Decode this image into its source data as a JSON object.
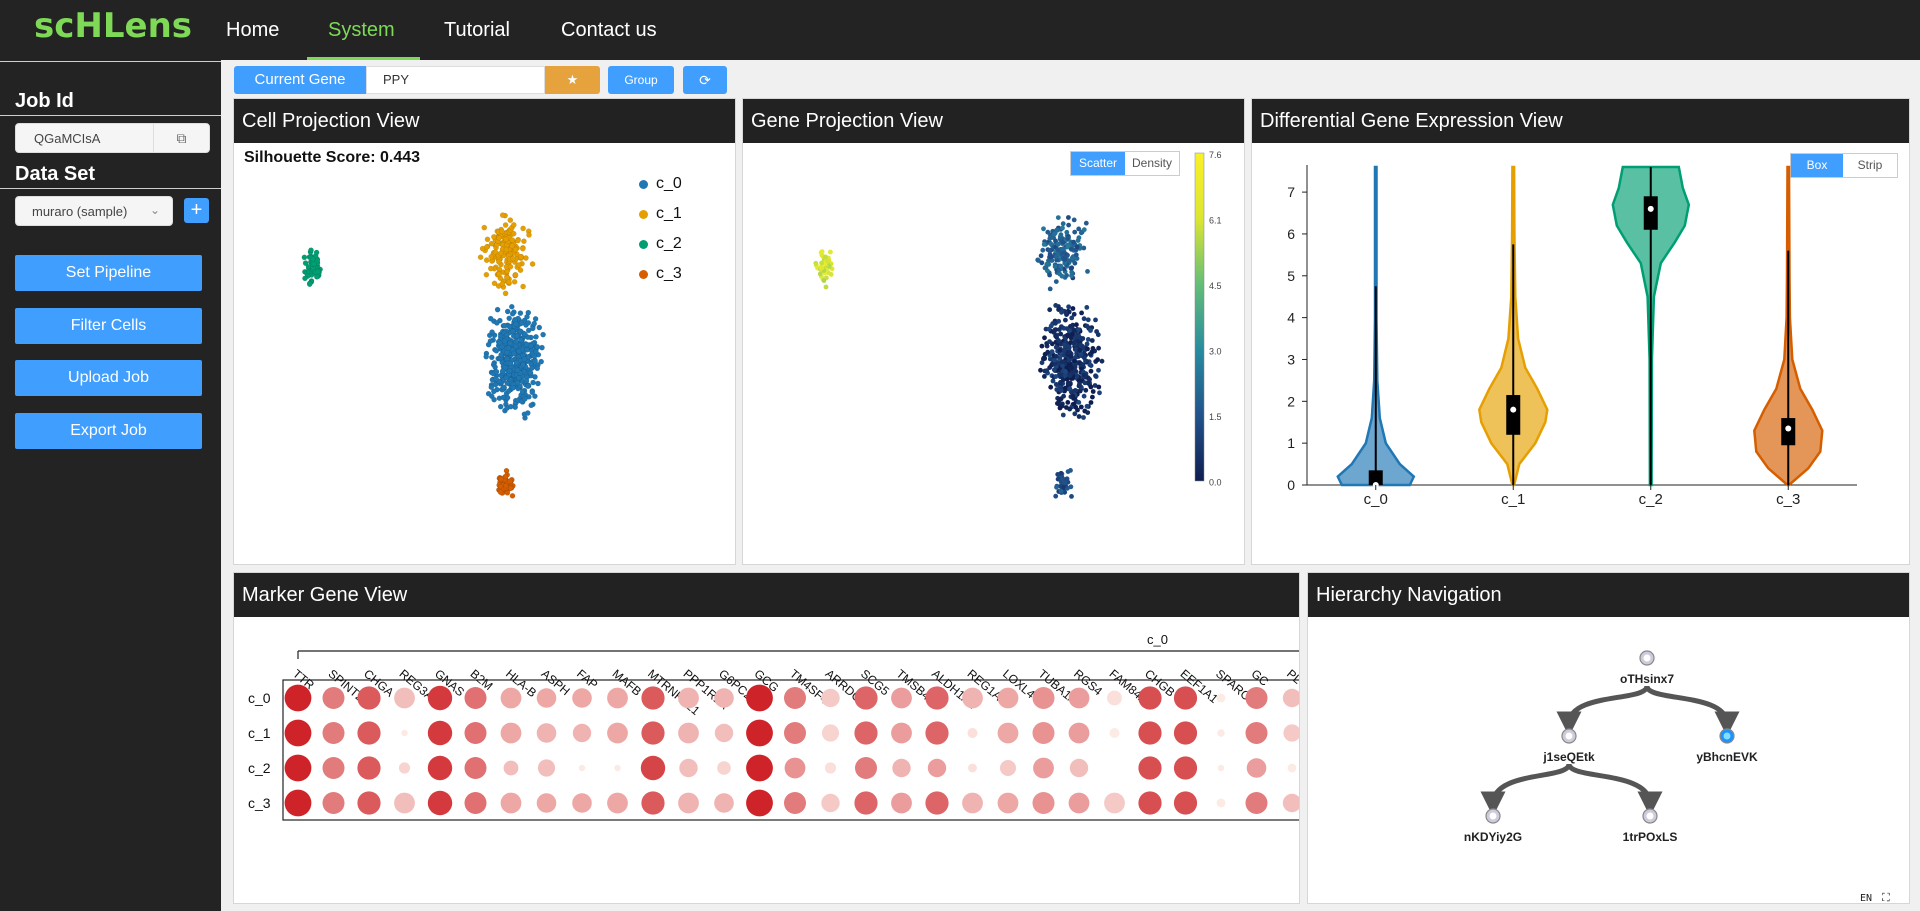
{
  "app": {
    "logo": "scHLens"
  },
  "nav": {
    "items": [
      "Home",
      "System",
      "Tutorial",
      "Contact us"
    ],
    "active": "System"
  },
  "sidebar": {
    "job_id_label": "Job Id",
    "job_id_value": "QGaMCIsA",
    "data_set_label": "Data Set",
    "data_set_value": "muraro (sample)",
    "buttons": [
      "Set Pipeline",
      "Filter Cells",
      "Upload Job",
      "Export Job"
    ]
  },
  "toolbar": {
    "current_gene_label": "Current Gene",
    "gene_value": "PPY",
    "star_label": "★",
    "group_label": "Group",
    "refresh_icon": "refresh-icon"
  },
  "cell_projection": {
    "title": "Cell Projection View",
    "silhouette": "Silhouette Score: 0.443",
    "legend": [
      {
        "label": "c_0",
        "color": "#1f77b4"
      },
      {
        "label": "c_1",
        "color": "#e69f00"
      },
      {
        "label": "c_2",
        "color": "#009e73"
      },
      {
        "label": "c_3",
        "color": "#d55e00"
      }
    ]
  },
  "gene_projection": {
    "title": "Gene Projection View",
    "toggle": [
      "Scatter",
      "Density"
    ],
    "colorbar_ticks": [
      "7.6",
      "6.1",
      "4.5",
      "3.0",
      "1.5",
      "0.0"
    ]
  },
  "diff_expression": {
    "title": "Differential Gene Expression View",
    "toggle": [
      "Box",
      "Strip"
    ],
    "chart_data": {
      "type": "violin",
      "categories": [
        "c_0",
        "c_1",
        "c_2",
        "c_3"
      ],
      "colors": [
        "#1f77b4",
        "#e69f00",
        "#009e73",
        "#d55e00"
      ],
      "medians": [
        0.0,
        1.8,
        6.6,
        1.35
      ],
      "q1": [
        0.0,
        1.2,
        6.1,
        0.95
      ],
      "q3": [
        0.35,
        2.15,
        6.9,
        1.6
      ],
      "whisker_high": [
        4.75,
        5.75,
        7.6,
        5.6
      ],
      "max": [
        7.6,
        7.6,
        7.6,
        7.6
      ],
      "ylim": [
        0,
        7.6
      ],
      "yticks": [
        0,
        1,
        2,
        3,
        4,
        5,
        6,
        7
      ]
    }
  },
  "marker_gene": {
    "title": "Marker Gene View",
    "group_label": "c_0",
    "genes": [
      "TTR",
      "SPINT2",
      "CHGA",
      "REG3A",
      "GNAS",
      "B2M",
      "HLA-B",
      "ASPH",
      "FAP",
      "MAFB",
      "MTRNR2L1",
      "PPP1R1A",
      "G6PC2",
      "GCG",
      "TM4SF4",
      "ARRDC4",
      "SCG5",
      "TMSB4X",
      "ALDH1A1",
      "REG1A",
      "LOXL4",
      "TUBA1A",
      "RGS4",
      "FAM84A",
      "CHGB",
      "EEF1A1",
      "SPARC",
      "GC",
      "PLCE"
    ],
    "rows": [
      "c_0",
      "c_1",
      "c_2",
      "c_3"
    ],
    "sizes": [
      [
        0.95,
        0.75,
        0.8,
        0.7,
        0.85,
        0.75,
        0.7,
        0.65,
        0.65,
        0.7,
        0.8,
        0.7,
        0.65,
        0.95,
        0.75,
        0.6,
        0.8,
        0.7,
        0.8,
        0.7,
        0.7,
        0.75,
        0.7,
        0.45,
        0.8,
        0.8,
        0.2,
        0.75,
        0.6
      ],
      [
        0.95,
        0.75,
        0.8,
        0.1,
        0.85,
        0.75,
        0.7,
        0.65,
        0.6,
        0.7,
        0.8,
        0.7,
        0.6,
        0.95,
        0.75,
        0.55,
        0.8,
        0.7,
        0.8,
        0.25,
        0.7,
        0.75,
        0.7,
        0.25,
        0.8,
        0.8,
        0.15,
        0.75,
        0.55
      ],
      [
        0.95,
        0.75,
        0.8,
        0.3,
        0.85,
        0.75,
        0.45,
        0.55,
        0.1,
        0.1,
        0.85,
        0.6,
        0.4,
        0.95,
        0.7,
        0.3,
        0.75,
        0.6,
        0.6,
        0.2,
        0.5,
        0.7,
        0.6,
        0.0,
        0.8,
        0.8,
        0.1,
        0.65,
        0.2
      ],
      [
        0.95,
        0.75,
        0.8,
        0.7,
        0.85,
        0.75,
        0.7,
        0.65,
        0.65,
        0.7,
        0.8,
        0.7,
        0.65,
        0.95,
        0.75,
        0.6,
        0.8,
        0.7,
        0.8,
        0.7,
        0.7,
        0.75,
        0.7,
        0.7,
        0.8,
        0.8,
        0.2,
        0.75,
        0.6
      ]
    ],
    "colors": [
      [
        0.95,
        0.55,
        0.7,
        0.25,
        0.85,
        0.6,
        0.35,
        0.35,
        0.35,
        0.35,
        0.7,
        0.3,
        0.3,
        0.95,
        0.55,
        0.2,
        0.65,
        0.4,
        0.65,
        0.3,
        0.35,
        0.45,
        0.4,
        0.1,
        0.75,
        0.75,
        0.05,
        0.55,
        0.25
      ],
      [
        0.95,
        0.55,
        0.7,
        0.05,
        0.85,
        0.6,
        0.35,
        0.3,
        0.3,
        0.35,
        0.7,
        0.3,
        0.25,
        0.95,
        0.55,
        0.15,
        0.65,
        0.4,
        0.65,
        0.1,
        0.35,
        0.45,
        0.4,
        0.05,
        0.75,
        0.75,
        0.05,
        0.55,
        0.2
      ],
      [
        0.95,
        0.55,
        0.7,
        0.15,
        0.85,
        0.6,
        0.25,
        0.25,
        0.05,
        0.05,
        0.8,
        0.25,
        0.15,
        0.95,
        0.45,
        0.1,
        0.55,
        0.3,
        0.4,
        0.1,
        0.2,
        0.4,
        0.25,
        0.0,
        0.75,
        0.75,
        0.05,
        0.4,
        0.05
      ],
      [
        0.95,
        0.55,
        0.7,
        0.25,
        0.85,
        0.6,
        0.35,
        0.35,
        0.35,
        0.35,
        0.7,
        0.3,
        0.3,
        0.95,
        0.55,
        0.2,
        0.65,
        0.4,
        0.65,
        0.3,
        0.35,
        0.45,
        0.4,
        0.2,
        0.75,
        0.75,
        0.05,
        0.55,
        0.25
      ]
    ]
  },
  "hierarchy": {
    "title": "Hierarchy Navigation",
    "nodes": [
      {
        "id": "oTHsinx7",
        "label": "oTHsinx7",
        "active": false
      },
      {
        "id": "j1seQEtk",
        "label": "j1seQEtk",
        "active": false
      },
      {
        "id": "yBhcnEVK",
        "label": "yBhcnEVK",
        "active": true
      },
      {
        "id": "nKDYiy2G",
        "label": "nKDYiy2G",
        "active": false
      },
      {
        "id": "1trPOxLS",
        "label": "1trPOxLS",
        "active": false
      }
    ]
  },
  "footer": {
    "lang_glyph": "EN"
  }
}
